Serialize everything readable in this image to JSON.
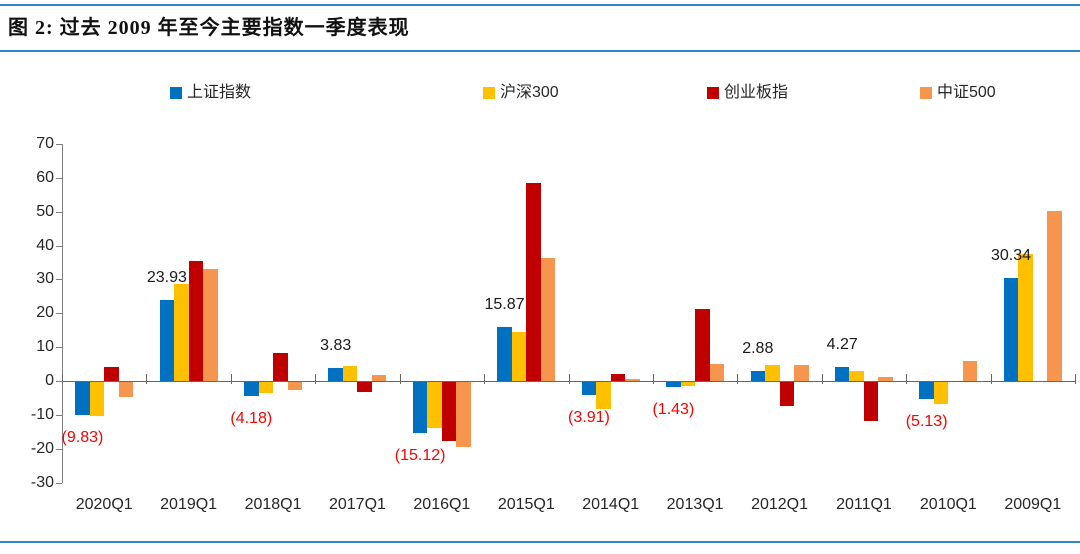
{
  "figure": {
    "title": "图 2:  过去 2009 年至今主要指数一季度表现"
  },
  "colors": {
    "accent_rule": "#2E86C8",
    "axis_line": "#7f7f7f",
    "zero_line": "#666666",
    "axis_text": "#262626",
    "positive_label": "#1a1a1a",
    "negative_label": "#FF0000"
  },
  "chart_data": {
    "type": "bar",
    "title": "图 2: 过去 2009 年至今主要指数一季度表现",
    "xlabel": "",
    "ylabel": "",
    "ylim": [
      -30,
      70
    ],
    "yticks": [
      70,
      60,
      50,
      40,
      30,
      20,
      10,
      0,
      -10,
      -20,
      -30
    ],
    "grid": false,
    "legend_position": "top",
    "categories": [
      "2020Q1",
      "2019Q1",
      "2018Q1",
      "2017Q1",
      "2016Q1",
      "2015Q1",
      "2014Q1",
      "2013Q1",
      "2012Q1",
      "2011Q1",
      "2010Q1",
      "2009Q1"
    ],
    "series": [
      {
        "name": "上证指数",
        "color": "#0070C0",
        "values": [
          -9.83,
          23.93,
          -4.18,
          3.83,
          -15.12,
          15.87,
          -3.91,
          -1.43,
          2.88,
          4.27,
          -5.13,
          30.34
        ],
        "labels": [
          "(9.83)",
          "23.93",
          "(4.18)",
          "3.83",
          "(15.12)",
          "15.87",
          "(3.91)",
          "(1.43)",
          "2.88",
          "4.27",
          "(5.13)",
          "30.34"
        ]
      },
      {
        "name": "沪深300",
        "color": "#FFC000",
        "values": [
          -10.0,
          28.6,
          -3.3,
          4.4,
          -13.7,
          14.6,
          -7.9,
          -1.2,
          4.6,
          3.0,
          -6.6,
          37.4
        ]
      },
      {
        "name": "创业板指",
        "color": "#C00000",
        "values": [
          4.1,
          35.4,
          8.4,
          -3.0,
          -17.5,
          58.4,
          2.0,
          21.4,
          -7.0,
          -11.4,
          null,
          null
        ]
      },
      {
        "name": "中证500",
        "color": "#F6954E",
        "values": [
          -4.3,
          33.1,
          -2.5,
          1.9,
          -19.3,
          36.4,
          0.6,
          4.9,
          4.7,
          1.2,
          5.9,
          50.2
        ]
      }
    ],
    "label_series": "上证指数",
    "negative_label_style": "red-parentheses"
  }
}
